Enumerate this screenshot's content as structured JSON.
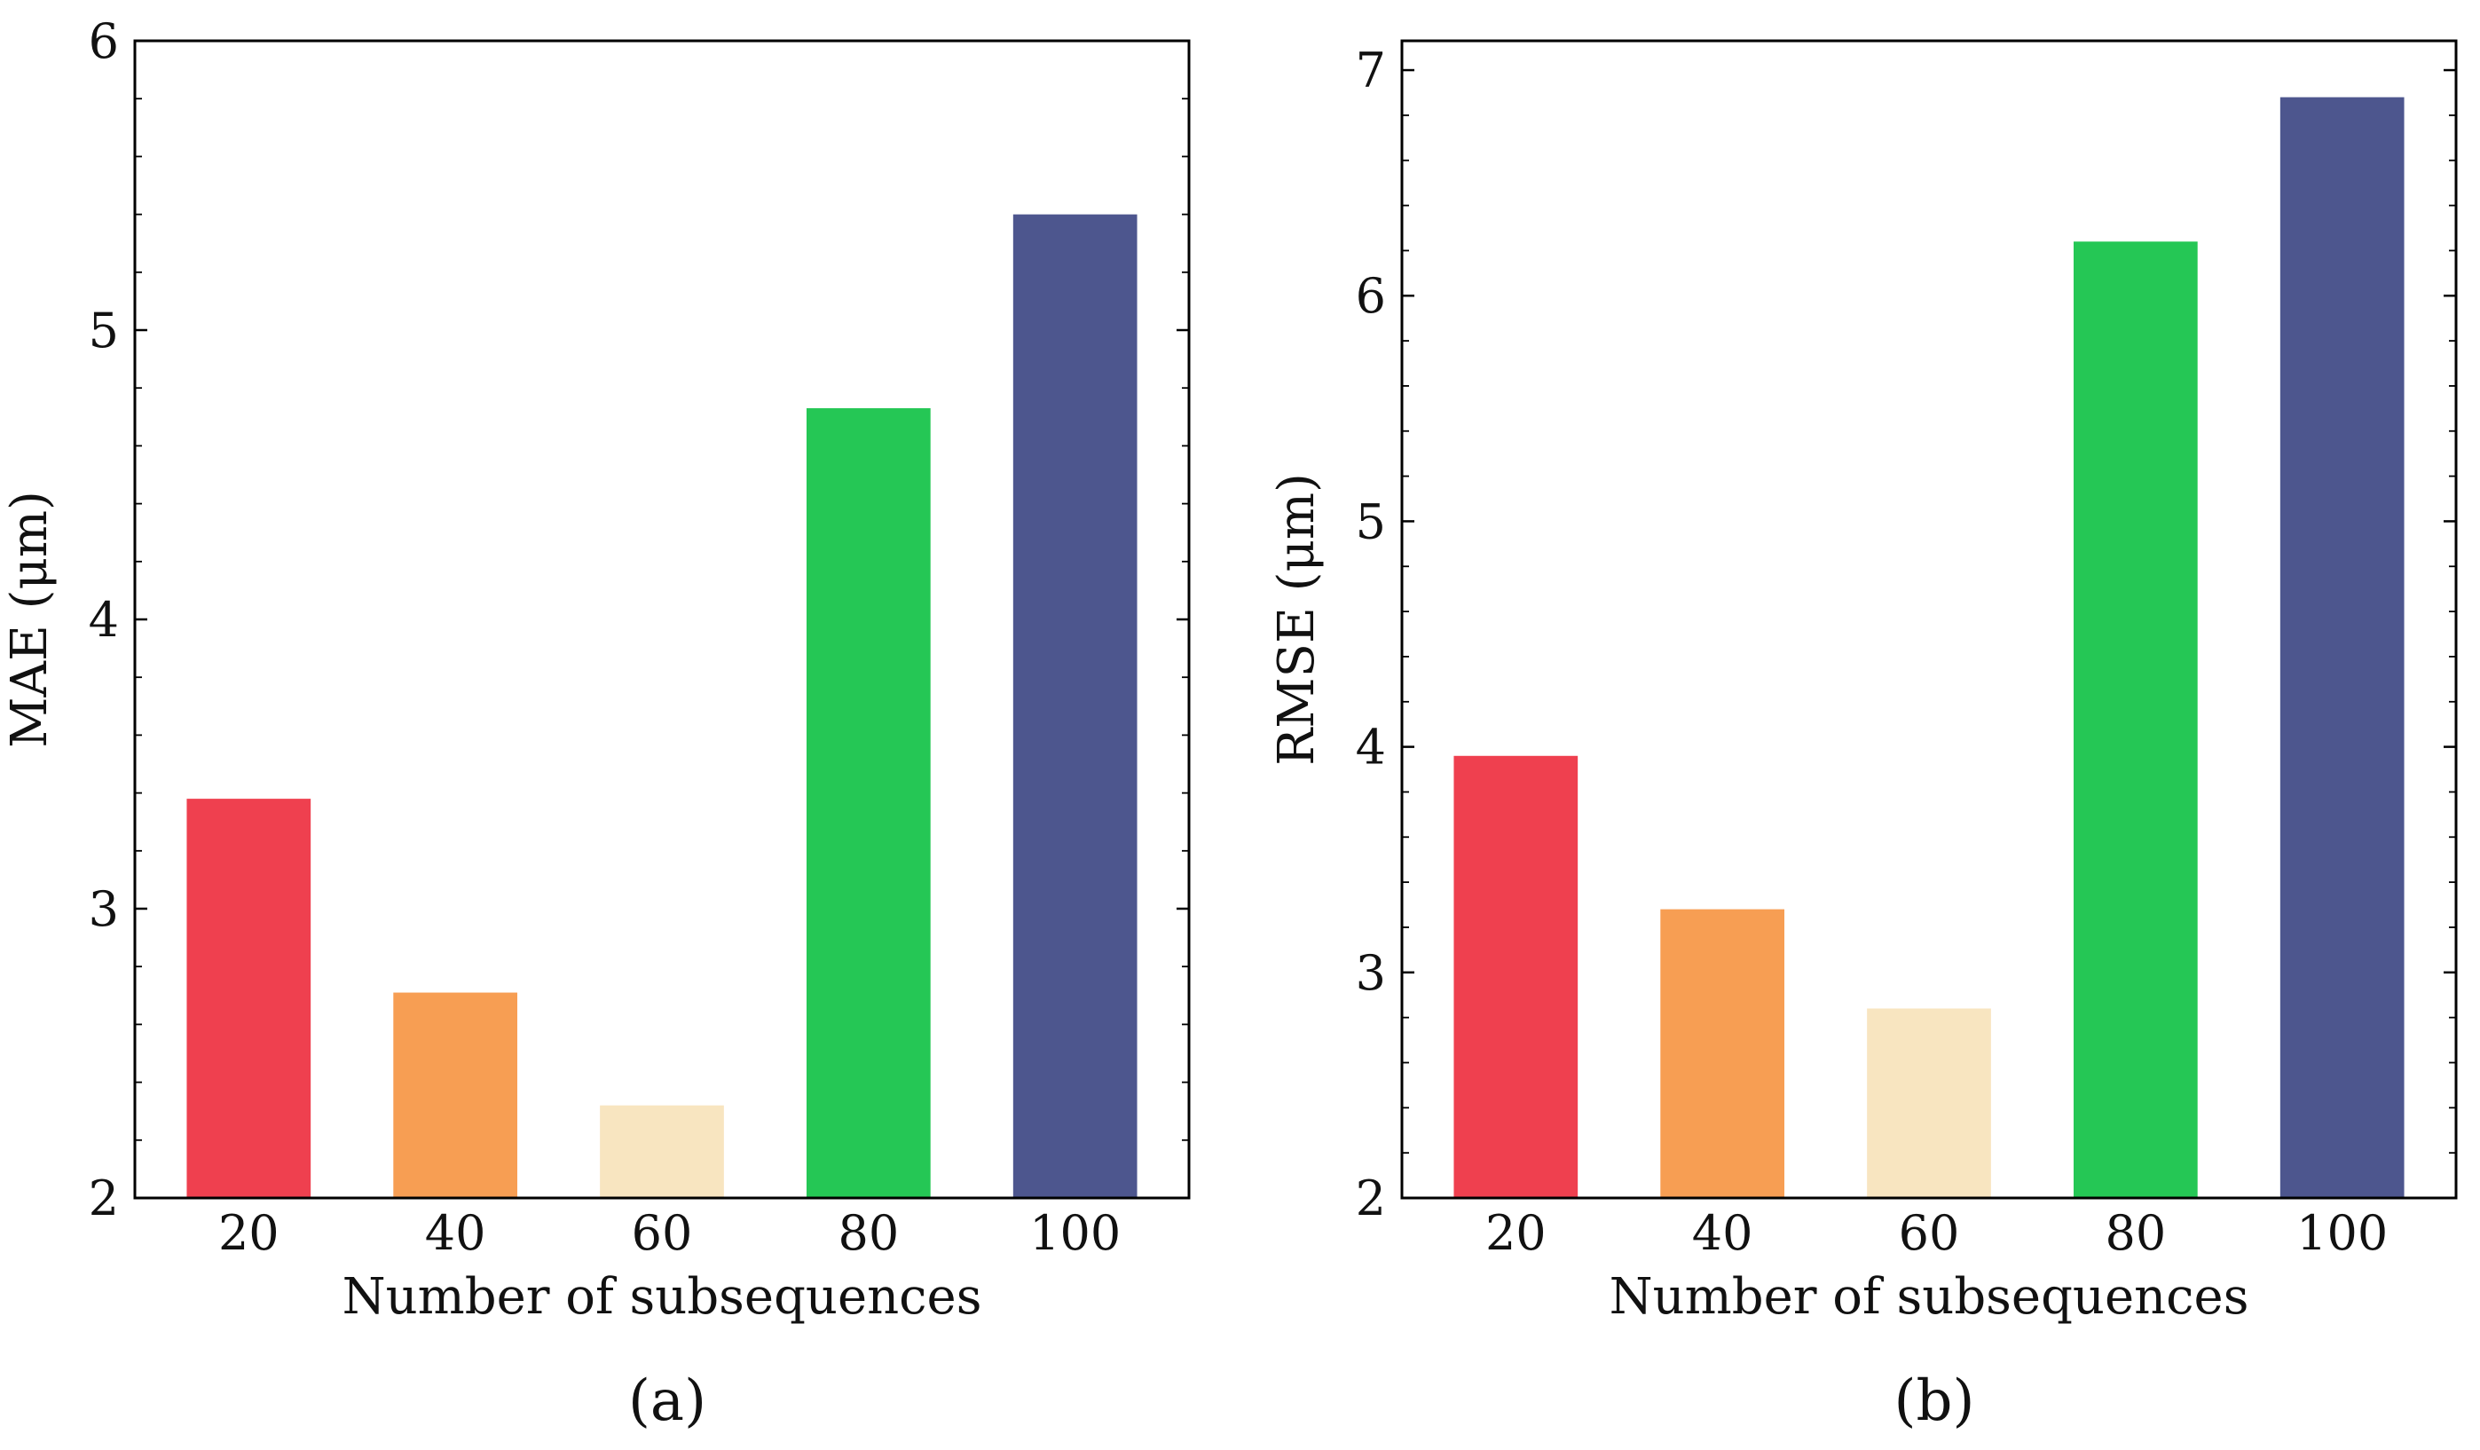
{
  "chart_data": [
    {
      "type": "bar",
      "panel": "a",
      "caption": "(a)",
      "categories": [
        "20",
        "40",
        "60",
        "80",
        "100"
      ],
      "values": [
        3.38,
        2.71,
        2.32,
        4.73,
        5.4
      ],
      "colors": [
        "#ef404f",
        "#f79e53",
        "#f8e5c0",
        "#25c755",
        "#4d568e"
      ],
      "title": "",
      "xlabel": "Number of subsequences",
      "ylabel": "MAE (μm)",
      "ylim": [
        2,
        6
      ],
      "yticks": [
        "2",
        "3",
        "4",
        "5",
        "6"
      ],
      "grid": false,
      "legend": "none"
    },
    {
      "type": "bar",
      "panel": "b",
      "caption": "(b)",
      "categories": [
        "20",
        "40",
        "60",
        "80",
        "100"
      ],
      "values": [
        3.96,
        3.28,
        2.84,
        6.24,
        6.88
      ],
      "colors": [
        "#ef404f",
        "#f79e53",
        "#f8e5c0",
        "#25c755",
        "#4d568e"
      ],
      "title": "",
      "xlabel": "Number of subsequences",
      "ylabel": "RMSE (μm)",
      "ylim": [
        2,
        7.13
      ],
      "yticks": [
        "2",
        "3",
        "4",
        "5",
        "6",
        "7"
      ],
      "grid": false,
      "legend": "none"
    }
  ]
}
